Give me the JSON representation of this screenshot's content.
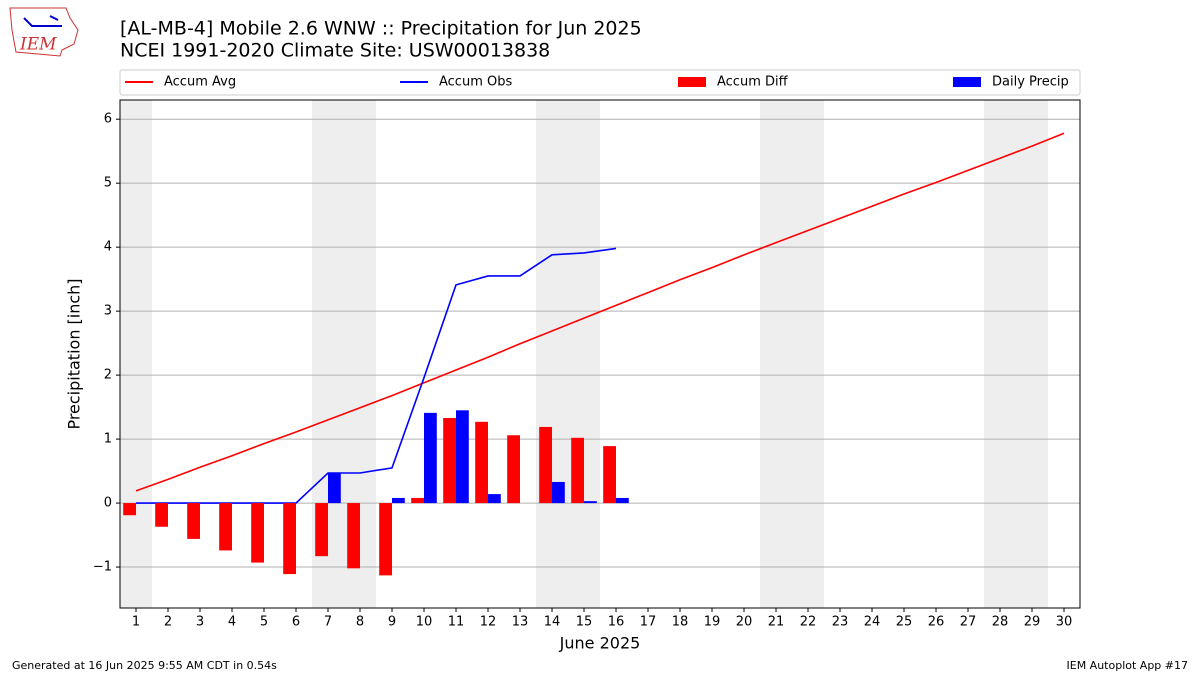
{
  "chart_data": {
    "type": "bar",
    "title": "[AL-MB-4] Mobile 2.6 WNW :: Precipitation for Jun 2025",
    "subtitle": "NCEI 1991-2020 Climate Site: USW00013838",
    "y_label": "Precipitation [inch]",
    "x_label": "June 2025",
    "logo_text": "IEM",
    "footer_left": "Generated at 16 Jun 2025 9:55 AM CDT in 0.54s",
    "footer_right": "IEM Autoplot App #17",
    "x": [
      1,
      2,
      3,
      4,
      5,
      6,
      7,
      8,
      9,
      10,
      11,
      12,
      13,
      14,
      15,
      16,
      17,
      18,
      19,
      20,
      21,
      22,
      23,
      24,
      25,
      26,
      27,
      28,
      29,
      30
    ],
    "xlim": [
      0.5,
      30.5
    ],
    "xticks": [
      1,
      2,
      3,
      4,
      5,
      6,
      7,
      8,
      9,
      10,
      11,
      12,
      13,
      14,
      15,
      16,
      17,
      18,
      19,
      20,
      21,
      22,
      23,
      24,
      25,
      26,
      27,
      28,
      29,
      30
    ],
    "ylim": [
      -1.64,
      6.3
    ],
    "yticks": [
      {
        "value": -1,
        "label": "−1"
      },
      0,
      1,
      2,
      3,
      4,
      5,
      6
    ],
    "grid": true,
    "shaded_spans": [
      [
        0.5,
        1.5
      ],
      [
        6.5,
        8.5
      ],
      [
        13.5,
        15.5
      ],
      [
        20.5,
        22.5
      ],
      [
        27.5,
        29.5
      ]
    ],
    "shade_color": "#eeeeee",
    "series": [
      {
        "name": "Accum Avg",
        "type": "line",
        "color": "#ff0000",
        "values": [
          0.19,
          0.37,
          0.56,
          0.74,
          0.93,
          1.11,
          1.3,
          1.49,
          1.68,
          1.88,
          2.08,
          2.28,
          2.49,
          2.69,
          2.89,
          3.09,
          3.29,
          3.49,
          3.68,
          3.88,
          4.07,
          4.26,
          4.45,
          4.64,
          4.83,
          5.01,
          5.2,
          5.39,
          5.58,
          5.78
        ]
      },
      {
        "name": "Accum Obs",
        "type": "line",
        "color": "#0000ff",
        "values": [
          0,
          0,
          0,
          0,
          0,
          0,
          0.47,
          0.47,
          0.55,
          1.96,
          3.41,
          3.55,
          3.55,
          3.88,
          3.91,
          3.98,
          null,
          null,
          null,
          null,
          null,
          null,
          null,
          null,
          null,
          null,
          null,
          null,
          null,
          null
        ]
      },
      {
        "name": "Accum Diff",
        "type": "bar",
        "color": "#ff0000",
        "values": [
          -0.19,
          -0.37,
          -0.56,
          -0.74,
          -0.93,
          -1.11,
          -0.83,
          -1.02,
          -1.13,
          0.08,
          1.33,
          1.27,
          1.06,
          1.19,
          1.02,
          0.89,
          null,
          null,
          null,
          null,
          null,
          null,
          null,
          null,
          null,
          null,
          null,
          null,
          null,
          null
        ]
      },
      {
        "name": "Daily Precip",
        "type": "bar",
        "color": "#0000ff",
        "values": [
          0,
          0,
          0,
          0,
          0,
          0,
          0.47,
          0,
          0.08,
          1.41,
          1.45,
          0.14,
          0,
          0.33,
          0.03,
          0.08,
          null,
          null,
          null,
          null,
          null,
          null,
          null,
          null,
          null,
          null,
          null,
          null,
          null,
          null
        ]
      }
    ]
  }
}
